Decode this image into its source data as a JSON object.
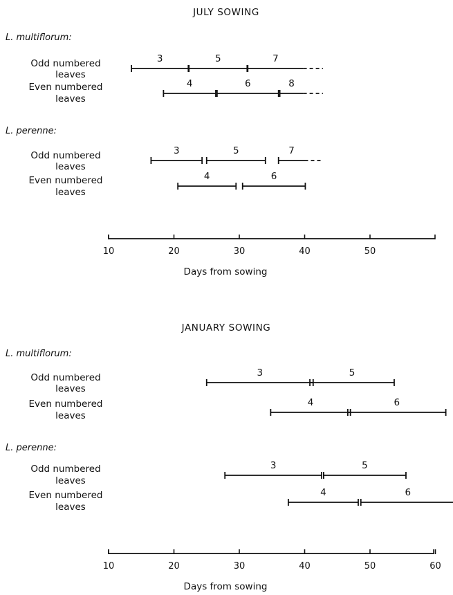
{
  "chart_data": [
    {
      "type": "gantt",
      "title": "JULY SOWING",
      "xlabel": "Days from sowing",
      "xlim": [
        10,
        60
      ],
      "xticks": [
        10,
        20,
        30,
        40,
        50
      ],
      "groups": [
        {
          "name": "L. multiflorum:",
          "rows": [
            {
              "label": [
                "Odd numbered",
                "leaves"
              ],
              "segments": [
                {
                  "leaf": "3",
                  "start": 13.5,
                  "end": 22.2
                },
                {
                  "leaf": "5",
                  "start": 22.3,
                  "end": 31.2
                },
                {
                  "leaf": "7",
                  "start": 31.3,
                  "end": 39.8,
                  "continues_to": 42.8
                }
              ]
            },
            {
              "label": [
                "Even numbered",
                "leaves"
              ],
              "segments": [
                {
                  "leaf": "4",
                  "start": 18.4,
                  "end": 26.4
                },
                {
                  "leaf": "6",
                  "start": 26.6,
                  "end": 36.0
                },
                {
                  "leaf": "8",
                  "start": 36.2,
                  "end": 39.8,
                  "continues_to": 42.8
                }
              ]
            }
          ]
        },
        {
          "name": "L. perenne:",
          "rows": [
            {
              "label": [
                "Odd numbered",
                "leaves"
              ],
              "segments": [
                {
                  "leaf": "3",
                  "start": 16.5,
                  "end": 24.3
                },
                {
                  "leaf": "5",
                  "start": 25.0,
                  "end": 34.0
                },
                {
                  "leaf": "7",
                  "start": 36.0,
                  "end": 40.0,
                  "continues_to": 42.8
                }
              ]
            },
            {
              "label": [
                "Even numbered",
                "leaves"
              ],
              "segments": [
                {
                  "leaf": "4",
                  "start": 20.6,
                  "end": 29.5
                },
                {
                  "leaf": "6",
                  "start": 30.5,
                  "end": 40.1
                }
              ]
            }
          ]
        }
      ]
    },
    {
      "type": "gantt",
      "title": "JANUARY SOWING",
      "xlabel": "Days from sowing",
      "xlim": [
        10,
        60
      ],
      "xticks": [
        10,
        20,
        30,
        40,
        50,
        60
      ],
      "groups": [
        {
          "name": "L. multiflorum:",
          "rows": [
            {
              "label": [
                "Odd numbered",
                "leaves"
              ],
              "segments": [
                {
                  "leaf": "3",
                  "start": 25.0,
                  "end": 41.3
                },
                {
                  "leaf": "5",
                  "start": 40.8,
                  "end": 53.7
                }
              ]
            },
            {
              "label": [
                "Even numbered",
                "leaves"
              ],
              "segments": [
                {
                  "leaf": "4",
                  "start": 34.8,
                  "end": 47.0
                },
                {
                  "leaf": "6",
                  "start": 46.6,
                  "end": 61.6
                }
              ]
            }
          ]
        },
        {
          "name": "L. perenne:",
          "rows": [
            {
              "label": [
                "Odd numbered",
                "leaves"
              ],
              "segments": [
                {
                  "leaf": "3",
                  "start": 27.8,
                  "end": 42.6
                },
                {
                  "leaf": "5",
                  "start": 42.9,
                  "end": 55.5
                }
              ]
            },
            {
              "label": [
                "Even numbered",
                "leaves"
              ],
              "segments": [
                {
                  "leaf": "4",
                  "start": 37.5,
                  "end": 48.2
                },
                {
                  "leaf": "6",
                  "start": 48.6,
                  "end": 63.0
                }
              ]
            }
          ]
        }
      ]
    }
  ]
}
